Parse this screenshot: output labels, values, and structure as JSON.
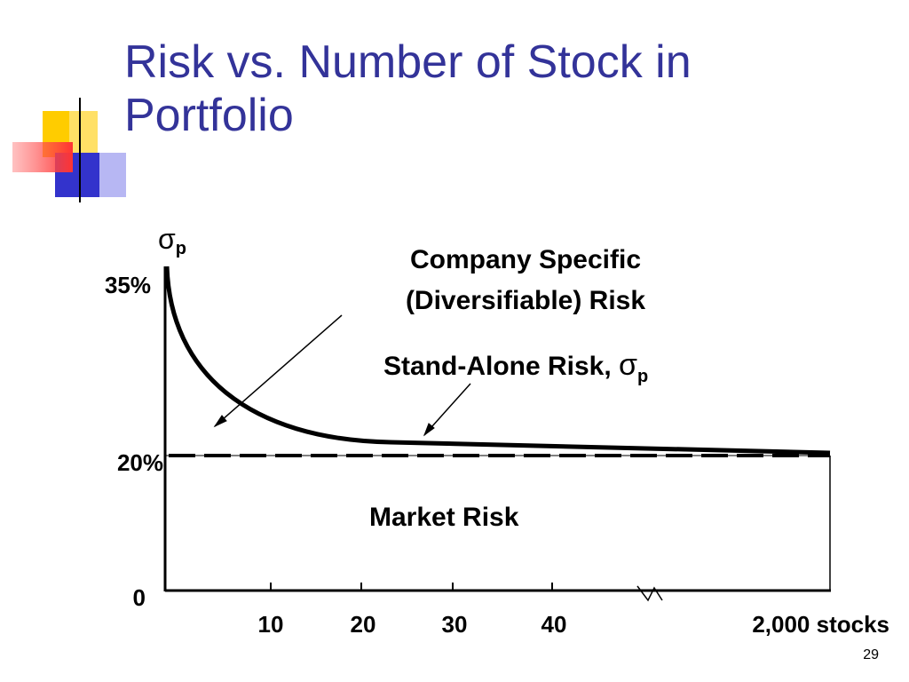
{
  "slide": {
    "title": "Risk vs. Number of Stock in Portfolio",
    "page_number": "29"
  },
  "diagram": {
    "y_axis_symbol": "σ",
    "y_axis_subscript": "p",
    "y_labels": [
      "35%",
      "20%",
      "0"
    ],
    "x_labels": [
      "10",
      "20",
      "30",
      "40",
      "2,000 stocks"
    ],
    "company_specific": [
      "Company Specific",
      "(Diversifiable) Risk"
    ],
    "stand_alone": {
      "text": "Stand-Alone Risk, ",
      "symbol": "σ",
      "subscript": "p"
    },
    "market": "Market Risk"
  }
}
